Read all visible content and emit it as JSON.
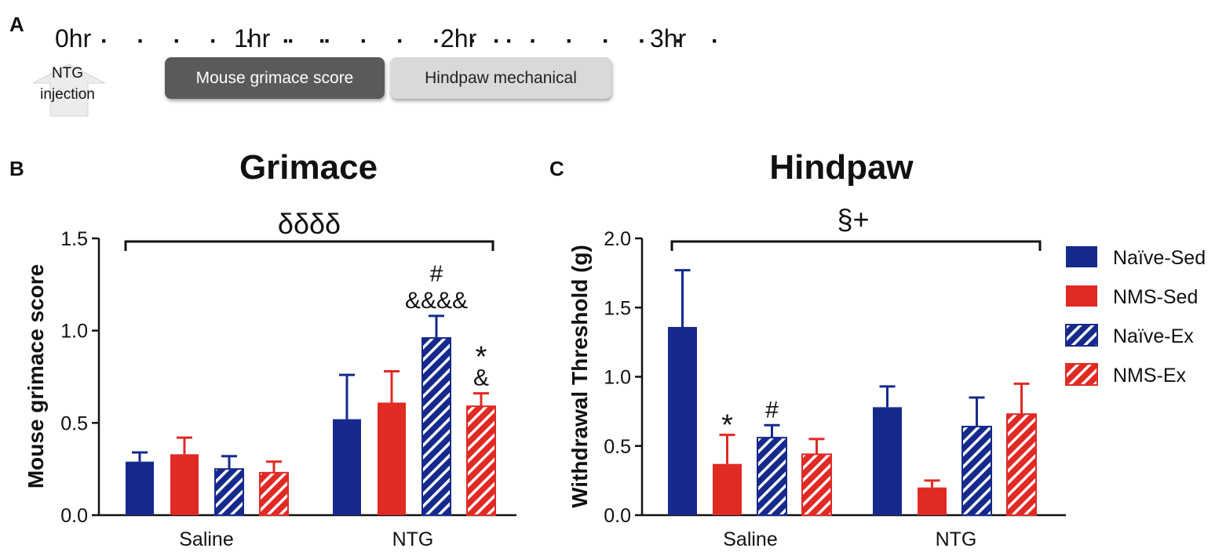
{
  "panel_letters": {
    "a": "A",
    "b": "B",
    "c": "C"
  },
  "timeline": {
    "labels": [
      "0hr",
      "1hr",
      "2hr",
      "3hr"
    ],
    "dots": "· · · · · · ·",
    "injection_label": [
      "NTG",
      "injection"
    ],
    "grimace_box": "Mouse grimace score",
    "hindpaw_box": "Hindpaw mechanical"
  },
  "colors": {
    "naive": "#152a8c",
    "nms": "#e02a24"
  },
  "legend": [
    {
      "name": "Naïve-Sed",
      "color": "#152a8c",
      "hatched": false
    },
    {
      "name": "NMS-Sed",
      "color": "#e02a24",
      "hatched": false
    },
    {
      "name": "Naïve-Ex",
      "color": "#152a8c",
      "hatched": true
    },
    {
      "name": "NMS-Ex",
      "color": "#e02a24",
      "hatched": true
    }
  ],
  "chart_data": [
    {
      "type": "bar",
      "title": "Grimace",
      "ylabel": "Mouse grimace score",
      "xlabel": "",
      "categories": [
        "Saline",
        "NTG"
      ],
      "ylim": [
        0,
        1.5
      ],
      "yticks": [
        "0.0",
        "0.5",
        "1.0",
        "1.5"
      ],
      "yticks_values": [
        0,
        0.5,
        1.0,
        1.5
      ],
      "series": [
        {
          "name": "Naïve-Sed",
          "values": [
            0.29,
            0.52
          ],
          "errors": [
            0.05,
            0.24
          ]
        },
        {
          "name": "NMS-Sed",
          "values": [
            0.33,
            0.61
          ],
          "errors": [
            0.09,
            0.17
          ]
        },
        {
          "name": "Naïve-Ex",
          "values": [
            0.25,
            0.96
          ],
          "errors": [
            0.07,
            0.12
          ]
        },
        {
          "name": "NMS-Ex",
          "values": [
            0.23,
            0.59
          ],
          "errors": [
            0.06,
            0.07
          ]
        }
      ],
      "bracket_label": "δδδδ",
      "annotations": [
        {
          "category": 1,
          "series": 2,
          "lines": [
            "#",
            "&&&&"
          ]
        },
        {
          "category": 1,
          "series": 3,
          "lines": [
            "*",
            "&"
          ]
        }
      ]
    },
    {
      "type": "bar",
      "title": "Hindpaw",
      "ylabel": "Withdrawal Threshold (g)",
      "xlabel": "",
      "categories": [
        "Saline",
        "NTG"
      ],
      "ylim": [
        0,
        2.0
      ],
      "yticks": [
        "0.0",
        "0.5",
        "1.0",
        "1.5",
        "2.0"
      ],
      "yticks_values": [
        0,
        0.5,
        1.0,
        1.5,
        2.0
      ],
      "series": [
        {
          "name": "Naïve-Sed",
          "values": [
            1.36,
            0.78
          ],
          "errors": [
            0.41,
            0.15
          ]
        },
        {
          "name": "NMS-Sed",
          "values": [
            0.37,
            0.2
          ],
          "errors": [
            0.21,
            0.05
          ]
        },
        {
          "name": "Naïve-Ex",
          "values": [
            0.56,
            0.64
          ],
          "errors": [
            0.09,
            0.21
          ]
        },
        {
          "name": "NMS-Ex",
          "values": [
            0.44,
            0.73
          ],
          "errors": [
            0.11,
            0.22
          ]
        }
      ],
      "bracket_label": "§+",
      "annotations": [
        {
          "category": 0,
          "series": 1,
          "lines": [
            "*"
          ]
        },
        {
          "category": 0,
          "series": 2,
          "lines": [
            "#"
          ]
        }
      ]
    }
  ]
}
